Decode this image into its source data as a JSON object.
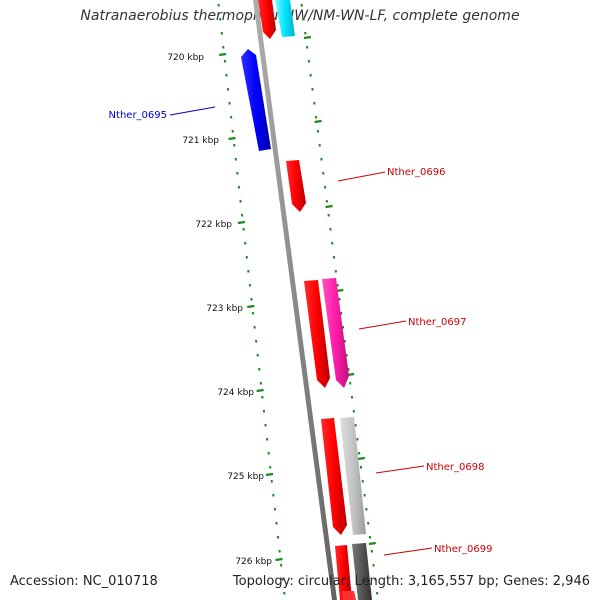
{
  "title": "Natranaerobius thermophilus JW/NM-WN-LF, complete genome",
  "footer": {
    "accession": "Accession: NC_010718",
    "summary": "Topology: circular; Length: 3,165,557 bp; Genes: 2,946"
  },
  "map": {
    "kbp_ticks": [
      "720 kbp",
      "721 kbp",
      "722 kbp",
      "723 kbp",
      "724 kbp",
      "725 kbp",
      "726 kbp"
    ],
    "genes": [
      {
        "name": "Nther_0695",
        "strand": "reverse",
        "color": "#0000cc"
      },
      {
        "name": "Nther_0696",
        "strand": "forward",
        "color": "#cc0000"
      },
      {
        "name": "Nther_0697",
        "strand": "forward",
        "color": "#cc0000"
      },
      {
        "name": "Nther_0698",
        "strand": "forward",
        "color": "#cc0000"
      },
      {
        "name": "Nther_0699",
        "strand": "forward",
        "color": "#cc0000"
      }
    ],
    "colors": {
      "backbone": "#888888",
      "cds_forward": "#ff0000",
      "cds_reverse": "#0000ff",
      "feature_magenta": "#ff1493",
      "feature_gray": "#c0c0c0",
      "feature_dark": "#555555",
      "feature_cyan": "#00e5ff",
      "dotted_track": "#1a8a1a"
    }
  }
}
